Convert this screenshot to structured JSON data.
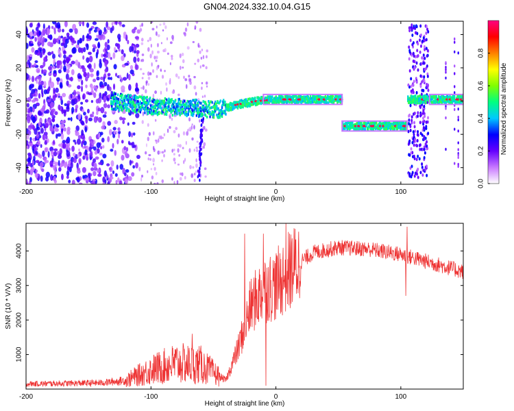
{
  "title": "GN04.2024.332.10.04.G15",
  "chart_data": [
    {
      "type": "heatmap",
      "xlabel": "Height of straight line (km)",
      "ylabel": "Frequency (Hz)",
      "xlim": [
        -200,
        150
      ],
      "ylim": [
        -50,
        48
      ],
      "x_ticks": [
        "-200",
        "-100",
        "0",
        "100"
      ],
      "y_ticks": [
        "40",
        "20",
        "0",
        "-20",
        "-40"
      ],
      "colorbar": {
        "label": "Normalized spectral amplitude",
        "range": [
          0,
          1
        ],
        "ticks": [
          "0.0",
          "0.2",
          "0.4",
          "0.6",
          "0.8"
        ],
        "colors": [
          "#ffffff",
          "#c878ff",
          "#6400ff",
          "#0000ff",
          "#00c8ff",
          "#00ff80",
          "#80ff00",
          "#ffff00",
          "#ff8000",
          "#ff0000",
          "#ff0080"
        ]
      },
      "ridge": [
        {
          "x": -130,
          "y": 0
        },
        {
          "x": -100,
          "y": -3
        },
        {
          "x": -70,
          "y": -4
        },
        {
          "x": -45,
          "y": -5
        },
        {
          "x": -30,
          "y": -2
        },
        {
          "x": -15,
          "y": 0
        },
        {
          "x": 0,
          "y": 1
        },
        {
          "x": 25,
          "y": 1
        },
        {
          "x": 53,
          "y": 1
        },
        {
          "x": 53,
          "y": -15
        },
        {
          "x": 105,
          "y": -15
        },
        {
          "x": 105,
          "y": 1
        },
        {
          "x": 150,
          "y": 1
        }
      ]
    },
    {
      "type": "line",
      "xlabel": "Height of straight line (km)",
      "ylabel": "SNR (10 * V/V)",
      "xlim": [
        -200,
        150
      ],
      "ylim": [
        0,
        4800
      ],
      "x_ticks": [
        "-200",
        "-100",
        "0",
        "100"
      ],
      "y_ticks": [
        "4000",
        "3000",
        "2000",
        "1000"
      ],
      "color": "#ee3333",
      "trend": [
        {
          "x": -200,
          "y": 150
        },
        {
          "x": -140,
          "y": 180
        },
        {
          "x": -120,
          "y": 250
        },
        {
          "x": -100,
          "y": 550
        },
        {
          "x": -80,
          "y": 750
        },
        {
          "x": -60,
          "y": 700
        },
        {
          "x": -40,
          "y": 250
        },
        {
          "x": -30,
          "y": 1200
        },
        {
          "x": -20,
          "y": 2400
        },
        {
          "x": -10,
          "y": 2900
        },
        {
          "x": 0,
          "y": 3000
        },
        {
          "x": 10,
          "y": 3400
        },
        {
          "x": 20,
          "y": 3700
        },
        {
          "x": 30,
          "y": 3950
        },
        {
          "x": 50,
          "y": 4100
        },
        {
          "x": 75,
          "y": 4050
        },
        {
          "x": 100,
          "y": 3900
        },
        {
          "x": 125,
          "y": 3650
        },
        {
          "x": 150,
          "y": 3400
        }
      ],
      "spikes": [
        {
          "x": -67,
          "y": 1600
        },
        {
          "x": -25,
          "y": 4500
        },
        {
          "x": -10,
          "y": 4500
        },
        {
          "x": -8,
          "y": 100
        },
        {
          "x": 8,
          "y": 4800
        },
        {
          "x": 104,
          "y": 2700
        },
        {
          "x": 105,
          "y": 4700
        }
      ]
    }
  ]
}
